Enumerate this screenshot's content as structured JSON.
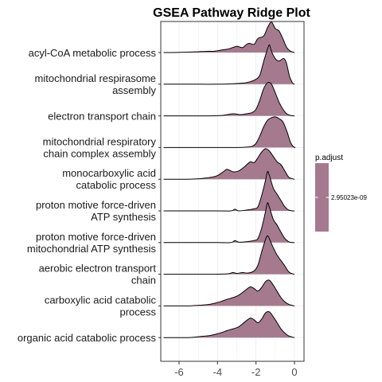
{
  "chart_data": {
    "type": "ridge",
    "title": "GSEA Pathway Ridge Plot",
    "xlabel": "",
    "ylabel": "",
    "xlim": [
      -6.8,
      0.3
    ],
    "x_ticks": [
      -6,
      -4,
      -2,
      0
    ],
    "x_tick_labels": [
      "-6",
      "-4",
      "-2",
      "0"
    ],
    "fill_color": "#A57A8E",
    "line_color": "#000000",
    "grid": true,
    "legend": {
      "title": "p.adjust",
      "position": "right",
      "color": "#A57A8E",
      "labels": [
        "2.95023e-09"
      ]
    },
    "categories": [
      "acyl-CoA metabolic process",
      "mitochondrial respirasome assembly",
      "electron transport chain",
      "mitochondrial respiratory chain complex assembly",
      "monocarboxylic acid catabolic process",
      "proton motive force-driven ATP synthesis",
      "proton motive force-driven mitochondrial ATP synthesis",
      "aerobic electron transport chain",
      "carboxylic acid catabolic process",
      "organic acid catabolic process"
    ],
    "category_label_lines": [
      [
        "acyl-CoA metabolic process"
      ],
      [
        "mitochondrial respirasome",
        "assembly"
      ],
      [
        "electron transport chain"
      ],
      [
        "mitochondrial respiratory",
        "chain complex assembly"
      ],
      [
        "monocarboxylic acid",
        "catabolic process"
      ],
      [
        "proton motive force-driven",
        "ATP synthesis"
      ],
      [
        "proton motive force-driven",
        "mitochondrial ATP synthesis"
      ],
      [
        "aerobic electron transport",
        "chain"
      ],
      [
        "carboxylic acid catabolic",
        "process"
      ],
      [
        "organic acid catabolic process"
      ]
    ],
    "series": [
      {
        "name": "acyl-CoA metabolic process",
        "x": [
          -6.8,
          -6.3,
          -5.5,
          -5.0,
          -4.5,
          -4.2,
          -3.8,
          -3.4,
          -3.0,
          -2.7,
          -2.4,
          -2.1,
          -1.9,
          -1.6,
          -1.4,
          -1.2,
          -1.0,
          -0.8,
          -0.6,
          -0.4,
          -0.2,
          0.0
        ],
        "density": [
          0.0,
          0.0,
          0.01,
          0.02,
          0.03,
          0.03,
          0.06,
          0.09,
          0.15,
          0.12,
          0.22,
          0.2,
          0.34,
          0.4,
          0.6,
          0.74,
          0.58,
          0.52,
          0.33,
          0.12,
          0.03,
          0.0
        ]
      },
      {
        "name": "mitochondrial respirasome assembly",
        "x": [
          -6.8,
          -5.0,
          -4.0,
          -3.2,
          -2.6,
          -2.3,
          -2.0,
          -1.8,
          -1.6,
          -1.4,
          -1.3,
          -1.2,
          -1.0,
          -0.8,
          -0.6,
          -0.5,
          -0.4,
          -0.25,
          -0.1,
          0.0
        ],
        "density": [
          0.0,
          0.0,
          0.0,
          0.01,
          0.03,
          0.06,
          0.12,
          0.22,
          0.55,
          0.85,
          0.95,
          0.8,
          0.62,
          0.56,
          0.62,
          0.6,
          0.48,
          0.18,
          0.03,
          0.0
        ]
      },
      {
        "name": "electron transport chain",
        "x": [
          -6.8,
          -4.5,
          -3.8,
          -3.2,
          -2.8,
          -2.5,
          -2.2,
          -2.0,
          -1.8,
          -1.6,
          -1.4,
          -1.2,
          -1.0,
          -0.8,
          -0.6,
          -0.4,
          -0.2,
          0.0
        ],
        "density": [
          0.0,
          0.0,
          0.01,
          0.05,
          0.03,
          0.05,
          0.08,
          0.16,
          0.38,
          0.66,
          0.8,
          0.77,
          0.56,
          0.33,
          0.16,
          0.05,
          0.01,
          0.0
        ]
      },
      {
        "name": "mitochondrial respiratory chain complex assembly",
        "x": [
          -6.8,
          -4.0,
          -3.0,
          -2.5,
          -2.2,
          -2.0,
          -1.8,
          -1.6,
          -1.4,
          -1.2,
          -1.0,
          -0.8,
          -0.6,
          -0.4,
          -0.2,
          -0.05,
          0.05
        ],
        "density": [
          0.0,
          0.0,
          0.0,
          0.01,
          0.03,
          0.1,
          0.28,
          0.5,
          0.66,
          0.72,
          0.74,
          0.7,
          0.62,
          0.4,
          0.12,
          0.02,
          0.0
        ]
      },
      {
        "name": "monocarboxylic acid catabolic process",
        "x": [
          -6.8,
          -5.5,
          -5.0,
          -4.6,
          -4.3,
          -4.0,
          -3.7,
          -3.5,
          -3.2,
          -2.9,
          -2.6,
          -2.3,
          -2.1,
          -1.9,
          -1.7,
          -1.5,
          -1.3,
          -1.1,
          -0.9,
          -0.7,
          -0.5,
          -0.3,
          -0.1,
          0.0
        ],
        "density": [
          0.0,
          0.0,
          0.01,
          0.03,
          0.05,
          0.09,
          0.18,
          0.24,
          0.18,
          0.2,
          0.3,
          0.42,
          0.4,
          0.52,
          0.66,
          0.74,
          0.68,
          0.55,
          0.42,
          0.35,
          0.2,
          0.05,
          0.01,
          0.0
        ]
      },
      {
        "name": "proton motive force-driven ATP synthesis",
        "x": [
          -6.8,
          -4.0,
          -3.3,
          -3.1,
          -2.9,
          -2.5,
          -2.1,
          -1.9,
          -1.7,
          -1.5,
          -1.4,
          -1.3,
          -1.1,
          -0.9,
          -0.7,
          -0.5,
          -0.3,
          -0.1,
          0.0
        ],
        "density": [
          0.0,
          0.0,
          0.0,
          0.04,
          0.0,
          0.02,
          0.05,
          0.1,
          0.38,
          0.75,
          0.95,
          0.85,
          0.55,
          0.4,
          0.25,
          0.1,
          0.02,
          0.0,
          0.0
        ]
      },
      {
        "name": "proton motive force-driven mitochondrial ATP synthesis",
        "x": [
          -6.8,
          -4.0,
          -3.3,
          -3.1,
          -2.9,
          -2.5,
          -2.1,
          -1.9,
          -1.7,
          -1.5,
          -1.4,
          -1.3,
          -1.1,
          -0.9,
          -0.7,
          -0.5,
          -0.3,
          -0.1,
          0.0
        ],
        "density": [
          0.0,
          0.0,
          0.0,
          0.05,
          0.01,
          0.02,
          0.05,
          0.1,
          0.36,
          0.76,
          0.96,
          0.85,
          0.56,
          0.42,
          0.25,
          0.1,
          0.02,
          0.0,
          0.0
        ]
      },
      {
        "name": "aerobic electron transport chain",
        "x": [
          -6.8,
          -4.5,
          -3.5,
          -3.2,
          -3.0,
          -2.7,
          -2.4,
          -2.1,
          -1.9,
          -1.7,
          -1.5,
          -1.4,
          -1.3,
          -1.1,
          -0.9,
          -0.7,
          -0.5,
          -0.3,
          -0.1,
          0.0
        ],
        "density": [
          0.0,
          0.0,
          0.01,
          0.04,
          0.02,
          0.04,
          0.03,
          0.08,
          0.22,
          0.55,
          0.85,
          0.93,
          0.85,
          0.64,
          0.46,
          0.33,
          0.2,
          0.06,
          0.01,
          0.0
        ]
      },
      {
        "name": "carboxylic acid catabolic process",
        "x": [
          -6.8,
          -5.6,
          -5.2,
          -4.8,
          -4.4,
          -4.1,
          -3.8,
          -3.5,
          -3.2,
          -2.9,
          -2.6,
          -2.3,
          -2.1,
          -1.9,
          -1.7,
          -1.5,
          -1.3,
          -1.1,
          -0.9,
          -0.7,
          -0.5,
          -0.3,
          -0.1,
          0.0
        ],
        "density": [
          0.0,
          0.0,
          0.01,
          0.02,
          0.04,
          0.07,
          0.11,
          0.16,
          0.2,
          0.26,
          0.36,
          0.46,
          0.42,
          0.36,
          0.45,
          0.59,
          0.62,
          0.5,
          0.35,
          0.2,
          0.1,
          0.04,
          0.01,
          0.0
        ]
      },
      {
        "name": "organic acid catabolic process",
        "x": [
          -6.8,
          -5.6,
          -5.2,
          -4.8,
          -4.4,
          -4.1,
          -3.8,
          -3.5,
          -3.2,
          -2.9,
          -2.6,
          -2.3,
          -2.1,
          -1.9,
          -1.7,
          -1.5,
          -1.3,
          -1.1,
          -0.9,
          -0.7,
          -0.5,
          -0.3,
          -0.1,
          0.0
        ],
        "density": [
          0.0,
          0.0,
          0.01,
          0.03,
          0.05,
          0.08,
          0.12,
          0.17,
          0.21,
          0.26,
          0.37,
          0.47,
          0.43,
          0.36,
          0.45,
          0.6,
          0.62,
          0.5,
          0.36,
          0.21,
          0.11,
          0.04,
          0.01,
          0.0
        ]
      }
    ]
  }
}
